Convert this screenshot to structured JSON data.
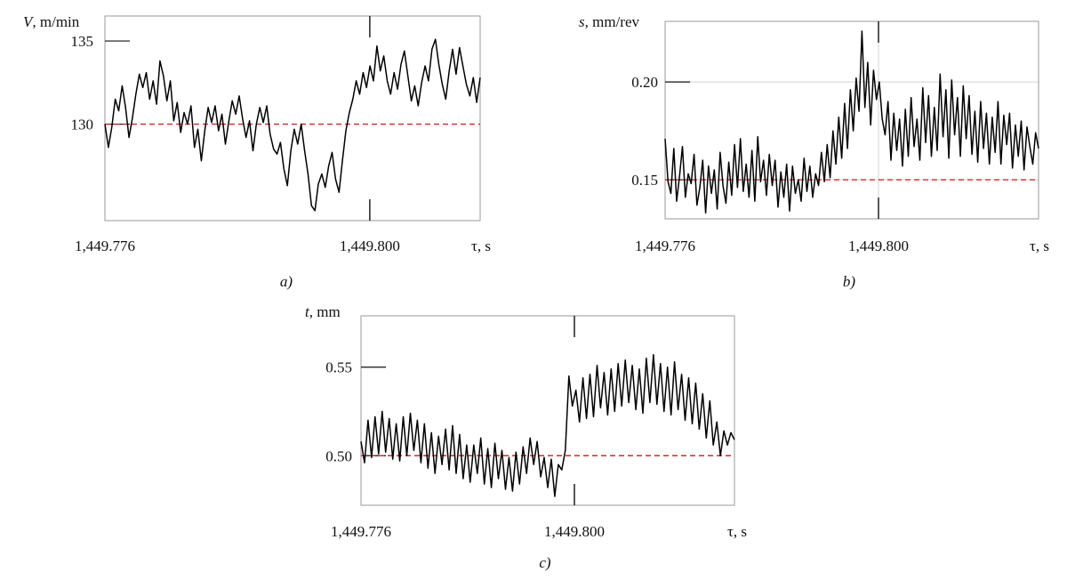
{
  "chart_data": [
    {
      "type": "line",
      "panel_label": "a)",
      "y_symbol": "V",
      "y_unit": ", m/min",
      "x_symbol": "τ",
      "x_unit": ", s",
      "xlim": [
        1449.776,
        1449.81
      ],
      "ylim": [
        124.2,
        136.5
      ],
      "x_ticks": [
        1449.776,
        1449.8
      ],
      "x_tick_labels": [
        "1,449.776",
        "1,449.800"
      ],
      "y_ticks": [
        130,
        135
      ],
      "y_tick_labels": [
        "130",
        "135"
      ],
      "reference_line": {
        "y": 130,
        "color": "#d62728",
        "style": "dashed"
      },
      "marker_x": 1449.8,
      "grid": false,
      "series": [
        {
          "color": "#000000",
          "x_start": 1449.776,
          "x_end": 1449.81,
          "values": [
            130.0,
            128.6,
            129.8,
            131.5,
            130.8,
            132.3,
            131.0,
            129.2,
            130.4,
            131.8,
            133.0,
            132.2,
            133.1,
            131.5,
            132.6,
            131.2,
            133.8,
            132.9,
            131.4,
            132.6,
            130.2,
            131.3,
            129.5,
            130.7,
            130.0,
            131.1,
            128.6,
            129.7,
            127.8,
            129.6,
            131.0,
            130.1,
            131.1,
            129.6,
            130.6,
            128.8,
            130.2,
            131.4,
            130.6,
            131.7,
            130.3,
            129.2,
            130.2,
            128.4,
            130.0,
            131.0,
            130.1,
            131.1,
            129.4,
            128.5,
            128.2,
            128.9,
            127.3,
            126.3,
            128.4,
            129.7,
            128.8,
            130.0,
            128.4,
            127.0,
            125.1,
            124.8,
            126.4,
            127.0,
            126.2,
            127.5,
            128.3,
            126.7,
            125.9,
            127.8,
            129.6,
            130.7,
            131.5,
            132.6,
            131.8,
            133.1,
            132.2,
            133.5,
            132.6,
            134.7,
            133.2,
            134.1,
            132.6,
            131.8,
            133.1,
            132.1,
            133.6,
            134.4,
            132.9,
            131.4,
            132.3,
            131.1,
            132.5,
            133.5,
            132.6,
            134.5,
            135.1,
            133.6,
            132.4,
            131.5,
            133.2,
            134.5,
            133.0,
            134.6,
            133.5,
            132.4,
            131.7,
            132.8,
            131.3,
            132.8
          ]
        }
      ]
    },
    {
      "type": "line",
      "panel_label": "b)",
      "y_symbol": "s",
      "y_unit": ", mm/rev",
      "x_symbol": "τ",
      "x_unit": ", s",
      "xlim": [
        1449.776,
        1449.818
      ],
      "ylim": [
        0.13,
        0.231
      ],
      "x_ticks": [
        1449.776,
        1449.8
      ],
      "x_tick_labels": [
        "1,449.776",
        "1,449.800"
      ],
      "y_ticks": [
        0.15,
        0.2
      ],
      "y_tick_labels": [
        "0.15",
        "0.20"
      ],
      "reference_line": {
        "y": 0.15,
        "color": "#d62728",
        "style": "dashed"
      },
      "marker_x": 1449.8,
      "grid": true,
      "series": [
        {
          "color": "#000000",
          "x_start": 1449.776,
          "x_end": 1449.818,
          "values": [
            0.171,
            0.149,
            0.143,
            0.166,
            0.139,
            0.152,
            0.167,
            0.141,
            0.153,
            0.148,
            0.163,
            0.137,
            0.146,
            0.16,
            0.133,
            0.157,
            0.143,
            0.155,
            0.135,
            0.164,
            0.147,
            0.138,
            0.159,
            0.142,
            0.168,
            0.146,
            0.171,
            0.144,
            0.158,
            0.141,
            0.165,
            0.139,
            0.172,
            0.149,
            0.16,
            0.142,
            0.163,
            0.147,
            0.16,
            0.136,
            0.154,
            0.141,
            0.158,
            0.134,
            0.157,
            0.143,
            0.15,
            0.139,
            0.161,
            0.144,
            0.157,
            0.141,
            0.153,
            0.147,
            0.164,
            0.149,
            0.168,
            0.151,
            0.175,
            0.158,
            0.182,
            0.161,
            0.189,
            0.166,
            0.196,
            0.175,
            0.202,
            0.185,
            0.226,
            0.187,
            0.21,
            0.178,
            0.206,
            0.191,
            0.2,
            0.181,
            0.173,
            0.19,
            0.16,
            0.184,
            0.165,
            0.181,
            0.157,
            0.186,
            0.162,
            0.192,
            0.167,
            0.181,
            0.16,
            0.197,
            0.169,
            0.193,
            0.162,
            0.187,
            0.165,
            0.204,
            0.172,
            0.196,
            0.161,
            0.201,
            0.173,
            0.192,
            0.162,
            0.198,
            0.171,
            0.193,
            0.163,
            0.185,
            0.159,
            0.19,
            0.166,
            0.184,
            0.158,
            0.182,
            0.164,
            0.19,
            0.158,
            0.183,
            0.168,
            0.184,
            0.156,
            0.178,
            0.162,
            0.18,
            0.155,
            0.177,
            0.167,
            0.158,
            0.174,
            0.166
          ]
        }
      ]
    },
    {
      "type": "line",
      "panel_label": "c)",
      "y_symbol": "t",
      "y_unit": ", mm",
      "x_symbol": "τ",
      "x_unit": ", s",
      "xlim": [
        1449.776,
        1449.818
      ],
      "ylim": [
        0.472,
        0.579
      ],
      "x_ticks": [
        1449.776,
        1449.8
      ],
      "x_tick_labels": [
        "1,449.776",
        "1,449.800"
      ],
      "y_ticks": [
        0.5,
        0.55
      ],
      "y_tick_labels": [
        "0.50",
        "0.55"
      ],
      "reference_line": {
        "y": 0.5,
        "color": "#d62728",
        "style": "dashed"
      },
      "marker_x": 1449.8,
      "grid": false,
      "series": [
        {
          "color": "#000000",
          "x_start": 1449.776,
          "x_end": 1449.818,
          "values": [
            0.508,
            0.496,
            0.52,
            0.499,
            0.522,
            0.501,
            0.525,
            0.502,
            0.521,
            0.498,
            0.518,
            0.497,
            0.522,
            0.5,
            0.524,
            0.503,
            0.52,
            0.496,
            0.518,
            0.493,
            0.513,
            0.49,
            0.511,
            0.495,
            0.515,
            0.492,
            0.517,
            0.49,
            0.512,
            0.487,
            0.506,
            0.485,
            0.506,
            0.49,
            0.51,
            0.484,
            0.504,
            0.482,
            0.507,
            0.487,
            0.503,
            0.481,
            0.499,
            0.48,
            0.502,
            0.484,
            0.505,
            0.49,
            0.51,
            0.495,
            0.508,
            0.488,
            0.499,
            0.482,
            0.498,
            0.477,
            0.495,
            0.492,
            0.503,
            0.545,
            0.528,
            0.537,
            0.519,
            0.544,
            0.521,
            0.546,
            0.522,
            0.551,
            0.527,
            0.547,
            0.523,
            0.549,
            0.525,
            0.552,
            0.528,
            0.554,
            0.53,
            0.551,
            0.526,
            0.549,
            0.524,
            0.555,
            0.53,
            0.557,
            0.529,
            0.552,
            0.525,
            0.55,
            0.523,
            0.553,
            0.526,
            0.546,
            0.52,
            0.544,
            0.518,
            0.541,
            0.515,
            0.535,
            0.51,
            0.531,
            0.506,
            0.519,
            0.5,
            0.514,
            0.506,
            0.513,
            0.509
          ]
        }
      ]
    }
  ]
}
